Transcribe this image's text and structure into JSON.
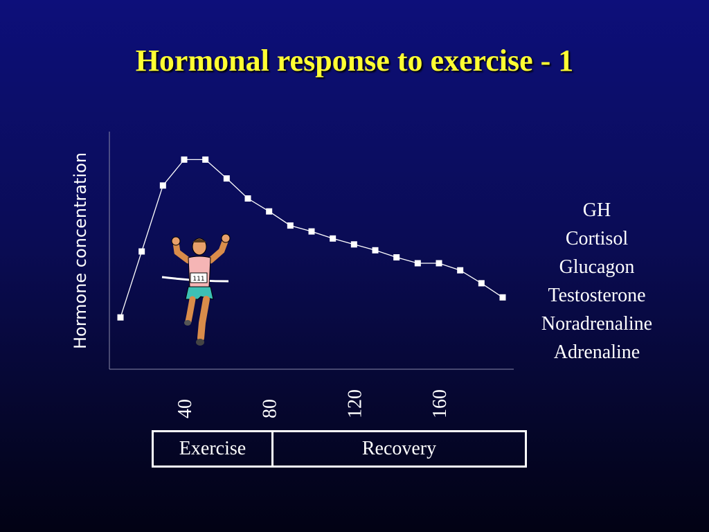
{
  "slide": {
    "title": "Hormonal response to exercise - 1"
  },
  "legend_items": [
    "GH",
    "Cortisol",
    "Glucagon",
    "Testosterone",
    "Noradrenaline",
    "Adrenaline"
  ],
  "phases": {
    "exercise": "Exercise",
    "recovery": "Recovery"
  },
  "colors": {
    "background_top": "#0d0f7a",
    "background_bottom": "#020214",
    "title": "#ffff33",
    "text": "#ffffff",
    "series_line": "#ffffff"
  },
  "illustration": "runner-icon",
  "chart_data": {
    "type": "line",
    "title": "",
    "xlabel": "",
    "ylabel": "Hormone concentration",
    "x": [
      10,
      20,
      30,
      40,
      50,
      60,
      70,
      80,
      90,
      100,
      110,
      120,
      130,
      140,
      150,
      160,
      170,
      180,
      190
    ],
    "xticks": [
      40,
      80,
      120,
      160
    ],
    "xlim": [
      0,
      195
    ],
    "ylim": [
      0,
      100
    ],
    "series": [
      {
        "values": [
          22,
          50,
          78,
          89,
          89,
          81,
          72.5,
          67,
          61,
          58.5,
          55.5,
          53,
          50.5,
          47.5,
          45,
          45,
          42,
          36.5,
          30.5
        ]
      }
    ],
    "grid": false,
    "marker": "square"
  }
}
